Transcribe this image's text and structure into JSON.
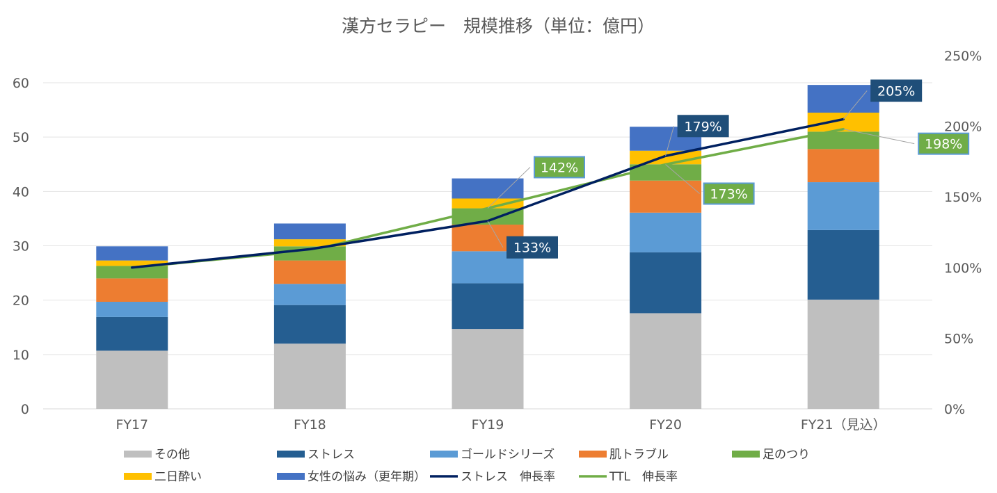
{
  "chart_data": {
    "type": "bar",
    "title": "漢方セラピー　規模推移（単位：億円）",
    "categories": [
      "FY17",
      "FY18",
      "FY19",
      "FY20",
      "FY21（見込）"
    ],
    "y_left": {
      "min": 0,
      "max": 60,
      "ticks": [
        "0",
        "10",
        "20",
        "30",
        "40",
        "50",
        "60"
      ]
    },
    "y_right": {
      "min": 0,
      "max": 250,
      "ticks": [
        "0%",
        "50%",
        "100%",
        "150%",
        "200%",
        "250%"
      ]
    },
    "grid": true,
    "legend_position": "bottom",
    "series": [
      {
        "name": "その他",
        "color": "#bfbfbf",
        "values": [
          10.7,
          12.0,
          14.7,
          17.6,
          20.1
        ]
      },
      {
        "name": "ストレス",
        "color": "#255e91",
        "values": [
          6.2,
          7.1,
          8.4,
          11.2,
          12.8
        ]
      },
      {
        "name": "ゴールドシリーズ",
        "color": "#5b9bd5",
        "values": [
          2.8,
          3.9,
          5.9,
          7.3,
          8.8
        ]
      },
      {
        "name": "肌トラブル",
        "color": "#ed7d31",
        "values": [
          4.3,
          4.3,
          4.9,
          5.9,
          6.1
        ]
      },
      {
        "name": "足のつり",
        "color": "#70ad47",
        "values": [
          2.3,
          2.6,
          3.0,
          3.0,
          3.2
        ]
      },
      {
        "name": "二日酔い",
        "color": "#ffc000",
        "values": [
          1.0,
          1.3,
          1.8,
          2.5,
          3.5
        ]
      },
      {
        "name": "女性の悩み（更年期）",
        "color": "#4472c4",
        "values": [
          2.6,
          2.9,
          3.7,
          4.4,
          5.1
        ]
      }
    ],
    "lines": [
      {
        "name": "ストレス　伸長率",
        "color": "#002060",
        "axis": "right",
        "values": [
          100,
          113,
          133,
          179,
          205
        ],
        "labels": [
          "",
          "",
          "133%",
          "179%",
          "205%"
        ],
        "label_bg": "#1f4e79",
        "label_border": "#1f4e79"
      },
      {
        "name": "TTL　伸長率",
        "color": "#70ad47",
        "axis": "right",
        "values": [
          100,
          112,
          142,
          173,
          198
        ],
        "labels": [
          "",
          "",
          "142%",
          "173%",
          "198%"
        ],
        "label_bg": "#70ad47",
        "label_border": "#5b9bd5"
      }
    ]
  }
}
